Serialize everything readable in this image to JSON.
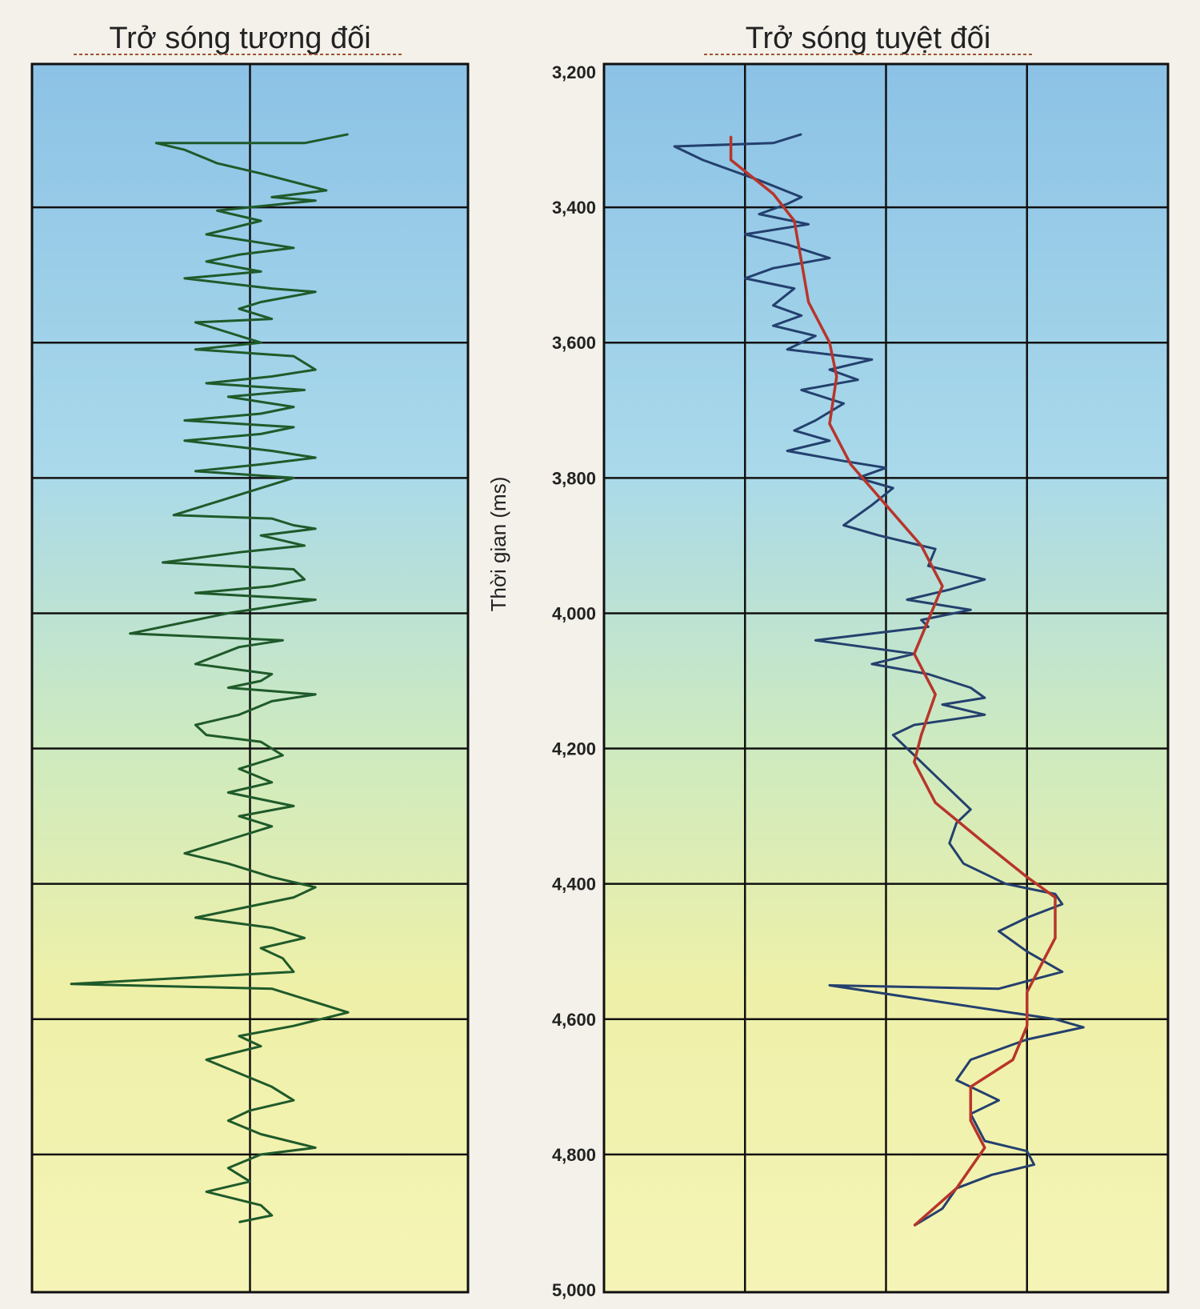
{
  "chart_data": [
    {
      "type": "line",
      "title": "Trở sóng tương đối",
      "orientation": "vertical-depth",
      "ylim": [
        3200,
        5000
      ],
      "y_inverted": true,
      "xlim": [
        -1,
        1
      ],
      "vertical_gridlines": 3,
      "grid": true,
      "series": [
        {
          "color": "#1f5a2a",
          "points": [
            [
              0.45,
              3292
            ],
            [
              0.25,
              3305
            ],
            [
              -0.43,
              3305
            ],
            [
              -0.3,
              3315
            ],
            [
              -0.15,
              3335
            ],
            [
              0.05,
              3350
            ],
            [
              0.35,
              3375
            ],
            [
              0.1,
              3385
            ],
            [
              0.3,
              3390
            ],
            [
              -0.15,
              3405
            ],
            [
              0.05,
              3420
            ],
            [
              -0.2,
              3440
            ],
            [
              0.2,
              3460
            ],
            [
              -0.05,
              3470
            ],
            [
              -0.2,
              3480
            ],
            [
              0.05,
              3495
            ],
            [
              -0.3,
              3505
            ],
            [
              0.1,
              3520
            ],
            [
              0.3,
              3525
            ],
            [
              0.05,
              3540
            ],
            [
              -0.05,
              3550
            ],
            [
              0.1,
              3565
            ],
            [
              -0.25,
              3570
            ],
            [
              -0.1,
              3585
            ],
            [
              0.05,
              3600
            ],
            [
              -0.25,
              3610
            ],
            [
              0.2,
              3620
            ],
            [
              0.3,
              3640
            ],
            [
              0.1,
              3650
            ],
            [
              -0.2,
              3660
            ],
            [
              0.25,
              3670
            ],
            [
              -0.1,
              3680
            ],
            [
              0.2,
              3695
            ],
            [
              0.05,
              3705
            ],
            [
              -0.3,
              3715
            ],
            [
              0.2,
              3725
            ],
            [
              0.05,
              3735
            ],
            [
              -0.3,
              3745
            ],
            [
              0.1,
              3760
            ],
            [
              0.3,
              3770
            ],
            [
              0.05,
              3780
            ],
            [
              -0.25,
              3790
            ],
            [
              0.2,
              3800
            ],
            [
              0.0,
              3820
            ],
            [
              -0.15,
              3835
            ],
            [
              -0.35,
              3855
            ],
            [
              0.1,
              3860
            ],
            [
              0.2,
              3870
            ],
            [
              0.3,
              3875
            ],
            [
              0.05,
              3885
            ],
            [
              0.25,
              3900
            ],
            [
              -0.05,
              3910
            ],
            [
              -0.4,
              3925
            ],
            [
              0.2,
              3935
            ],
            [
              0.25,
              3950
            ],
            [
              0.1,
              3960
            ],
            [
              -0.25,
              3970
            ],
            [
              0.3,
              3980
            ],
            [
              0.1,
              3990
            ],
            [
              -0.1,
              4000
            ],
            [
              -0.55,
              4030
            ],
            [
              0.15,
              4040
            ],
            [
              -0.05,
              4050
            ],
            [
              -0.25,
              4075
            ],
            [
              0.1,
              4090
            ],
            [
              0.05,
              4100
            ],
            [
              -0.1,
              4110
            ],
            [
              0.3,
              4120
            ],
            [
              0.1,
              4130
            ],
            [
              -0.05,
              4150
            ],
            [
              -0.25,
              4165
            ],
            [
              -0.2,
              4180
            ],
            [
              0.05,
              4190
            ],
            [
              0.15,
              4210
            ],
            [
              -0.05,
              4230
            ],
            [
              0.1,
              4250
            ],
            [
              -0.1,
              4265
            ],
            [
              0.2,
              4285
            ],
            [
              -0.05,
              4300
            ],
            [
              0.1,
              4315
            ],
            [
              -0.05,
              4330
            ],
            [
              -0.3,
              4355
            ],
            [
              -0.1,
              4370
            ],
            [
              0.1,
              4390
            ],
            [
              0.3,
              4405
            ],
            [
              0.2,
              4420
            ],
            [
              0.05,
              4430
            ],
            [
              -0.25,
              4450
            ],
            [
              0.1,
              4465
            ],
            [
              0.25,
              4480
            ],
            [
              0.05,
              4495
            ],
            [
              0.15,
              4510
            ],
            [
              0.2,
              4530
            ],
            [
              -0.82,
              4548
            ],
            [
              0.1,
              4555
            ],
            [
              0.45,
              4590
            ],
            [
              0.2,
              4610
            ],
            [
              -0.05,
              4625
            ],
            [
              0.05,
              4640
            ],
            [
              -0.2,
              4660
            ],
            [
              -0.05,
              4680
            ],
            [
              0.1,
              4700
            ],
            [
              0.2,
              4720
            ],
            [
              0.0,
              4735
            ],
            [
              -0.1,
              4750
            ],
            [
              0.05,
              4770
            ],
            [
              0.3,
              4790
            ],
            [
              0.05,
              4800
            ],
            [
              -0.1,
              4820
            ],
            [
              0.0,
              4840
            ],
            [
              -0.2,
              4855
            ],
            [
              0.05,
              4875
            ],
            [
              0.1,
              4890
            ],
            [
              -0.05,
              4900
            ]
          ]
        }
      ]
    },
    {
      "type": "line",
      "title": "Trở sóng tuyệt đối",
      "ylabel": "Thời gian (ms)",
      "orientation": "vertical-depth",
      "y_ticks": [
        "3,200",
        "3,400",
        "3,600",
        "3,800",
        "4,000",
        "4,200",
        "4,400",
        "4,600",
        "4,800",
        "5,000"
      ],
      "ylim": [
        3200,
        5000
      ],
      "y_inverted": true,
      "xlim": [
        0,
        4
      ],
      "vertical_gridlines": 3,
      "grid": true,
      "series": [
        {
          "color": "#24406e",
          "points": [
            [
              1.4,
              3292
            ],
            [
              1.2,
              3305
            ],
            [
              0.5,
              3310
            ],
            [
              0.7,
              3330
            ],
            [
              0.9,
              3345
            ],
            [
              1.1,
              3360
            ],
            [
              1.4,
              3385
            ],
            [
              1.3,
              3395
            ],
            [
              1.1,
              3410
            ],
            [
              1.45,
              3425
            ],
            [
              1.0,
              3440
            ],
            [
              1.3,
              3455
            ],
            [
              1.6,
              3475
            ],
            [
              1.2,
              3490
            ],
            [
              1.0,
              3505
            ],
            [
              1.35,
              3520
            ],
            [
              1.2,
              3545
            ],
            [
              1.4,
              3560
            ],
            [
              1.2,
              3575
            ],
            [
              1.5,
              3590
            ],
            [
              1.3,
              3610
            ],
            [
              1.9,
              3625
            ],
            [
              1.6,
              3640
            ],
            [
              1.8,
              3655
            ],
            [
              1.4,
              3670
            ],
            [
              1.7,
              3690
            ],
            [
              1.5,
              3715
            ],
            [
              1.35,
              3730
            ],
            [
              1.6,
              3745
            ],
            [
              1.3,
              3760
            ],
            [
              1.7,
              3775
            ],
            [
              2.0,
              3785
            ],
            [
              1.8,
              3800
            ],
            [
              2.05,
              3815
            ],
            [
              1.9,
              3840
            ],
            [
              1.7,
              3870
            ],
            [
              1.95,
              3885
            ],
            [
              2.35,
              3905
            ],
            [
              2.3,
              3930
            ],
            [
              2.7,
              3950
            ],
            [
              2.45,
              3965
            ],
            [
              2.15,
              3980
            ],
            [
              2.6,
              3995
            ],
            [
              2.25,
              4010
            ],
            [
              2.3,
              4020
            ],
            [
              1.5,
              4040
            ],
            [
              2.2,
              4060
            ],
            [
              1.9,
              4075
            ],
            [
              2.3,
              4090
            ],
            [
              2.6,
              4110
            ],
            [
              2.7,
              4125
            ],
            [
              2.4,
              4135
            ],
            [
              2.7,
              4150
            ],
            [
              2.2,
              4165
            ],
            [
              2.05,
              4180
            ],
            [
              2.2,
              4210
            ],
            [
              2.3,
              4230
            ],
            [
              2.45,
              4260
            ],
            [
              2.6,
              4290
            ],
            [
              2.5,
              4310
            ],
            [
              2.45,
              4340
            ],
            [
              2.55,
              4370
            ],
            [
              2.85,
              4400
            ],
            [
              3.2,
              4415
            ],
            [
              3.25,
              4430
            ],
            [
              3.0,
              4450
            ],
            [
              2.8,
              4470
            ],
            [
              3.0,
              4500
            ],
            [
              3.25,
              4530
            ],
            [
              2.8,
              4555
            ],
            [
              1.6,
              4550
            ],
            [
              3.2,
              4600
            ],
            [
              3.4,
              4612
            ],
            [
              3.0,
              4630
            ],
            [
              2.6,
              4660
            ],
            [
              2.5,
              4690
            ],
            [
              2.8,
              4720
            ],
            [
              2.6,
              4740
            ],
            [
              2.7,
              4780
            ],
            [
              3.0,
              4795
            ],
            [
              3.05,
              4815
            ],
            [
              2.75,
              4830
            ],
            [
              2.5,
              4850
            ],
            [
              2.4,
              4880
            ],
            [
              2.2,
              4905
            ]
          ]
        },
        {
          "color": "#b8352b",
          "points": [
            [
              0.9,
              3295
            ],
            [
              0.9,
              3330
            ],
            [
              1.2,
              3380
            ],
            [
              1.35,
              3420
            ],
            [
              1.4,
              3480
            ],
            [
              1.45,
              3540
            ],
            [
              1.6,
              3600
            ],
            [
              1.65,
              3650
            ],
            [
              1.6,
              3720
            ],
            [
              1.75,
              3780
            ],
            [
              2.0,
              3840
            ],
            [
              2.25,
              3900
            ],
            [
              2.4,
              3960
            ],
            [
              2.3,
              4010
            ],
            [
              2.2,
              4060
            ],
            [
              2.35,
              4120
            ],
            [
              2.25,
              4180
            ],
            [
              2.2,
              4220
            ],
            [
              2.35,
              4280
            ],
            [
              2.7,
              4340
            ],
            [
              3.0,
              4390
            ],
            [
              3.2,
              4420
            ],
            [
              3.2,
              4480
            ],
            [
              3.1,
              4520
            ],
            [
              3.0,
              4560
            ],
            [
              3.0,
              4610
            ],
            [
              2.9,
              4660
            ],
            [
              2.6,
              4700
            ],
            [
              2.6,
              4750
            ],
            [
              2.7,
              4790
            ],
            [
              2.5,
              4850
            ],
            [
              2.2,
              4905
            ]
          ]
        }
      ]
    }
  ]
}
